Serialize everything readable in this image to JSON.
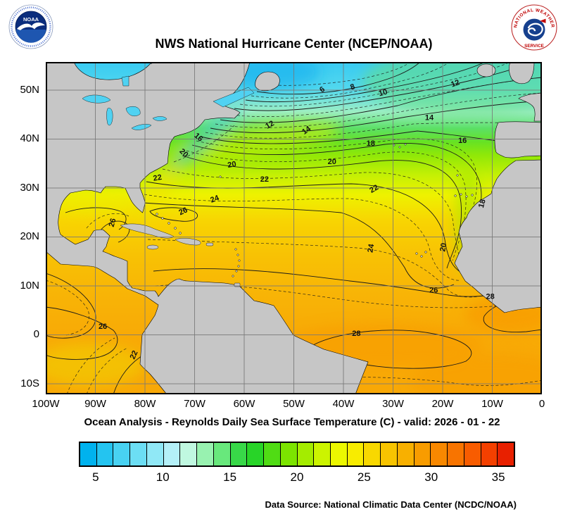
{
  "header": {
    "title": "NWS National Hurricane Center (NCEP/NOAA)"
  },
  "logos": {
    "noaa_text": "NOAA",
    "nws_ring_top": "NATIONAL WEATHER",
    "nws_ring_bottom": "SERVICE"
  },
  "map": {
    "extent": {
      "lon_min": -100,
      "lon_max": 0,
      "lat_min": -12,
      "lat_max": 55.75
    },
    "y_ticks": [
      {
        "label": "50N",
        "lat": 50
      },
      {
        "label": "40N",
        "lat": 40
      },
      {
        "label": "30N",
        "lat": 30
      },
      {
        "label": "20N",
        "lat": 20
      },
      {
        "label": "10N",
        "lat": 10
      },
      {
        "label": "0",
        "lat": 0
      },
      {
        "label": "10S",
        "lat": -10
      }
    ],
    "x_ticks": [
      {
        "label": "100W",
        "lon": -100
      },
      {
        "label": "90W",
        "lon": -90
      },
      {
        "label": "80W",
        "lon": -80
      },
      {
        "label": "70W",
        "lon": -70
      },
      {
        "label": "60W",
        "lon": -60
      },
      {
        "label": "50W",
        "lon": -50
      },
      {
        "label": "40W",
        "lon": -40
      },
      {
        "label": "30W",
        "lon": -30
      },
      {
        "label": "20W",
        "lon": -20
      },
      {
        "label": "10W",
        "lon": -10
      },
      {
        "label": "0",
        "lon": 0
      }
    ],
    "contour_labels": [
      {
        "v": "6",
        "lon": -44,
        "lat": 49.7,
        "rot": -35
      },
      {
        "v": "8",
        "lon": -38,
        "lat": 50.2,
        "rot": -20
      },
      {
        "v": "10",
        "lon": -31.9,
        "lat": 49.0,
        "rot": -15
      },
      {
        "v": "12",
        "lon": -17.3,
        "lat": 50.9,
        "rot": -20
      },
      {
        "v": "12",
        "lon": -54.6,
        "lat": 42.5,
        "rot": -30
      },
      {
        "v": "14",
        "lon": -47.2,
        "lat": 41.4,
        "rot": -35
      },
      {
        "v": "14",
        "lon": -22.7,
        "lat": 43.9,
        "rot": 0
      },
      {
        "v": "16",
        "lon": -69.5,
        "lat": 40.0,
        "rot": 40
      },
      {
        "v": "16",
        "lon": -16.0,
        "lat": 39.2,
        "rot": 0
      },
      {
        "v": "18",
        "lon": -34.5,
        "lat": 38.6,
        "rot": 0
      },
      {
        "v": "18",
        "lon": -11.6,
        "lat": 26.7,
        "rot": -75
      },
      {
        "v": "20",
        "lon": -72.5,
        "lat": 36.8,
        "rot": 45
      },
      {
        "v": "20",
        "lon": -62.4,
        "lat": 34.3,
        "rot": -10
      },
      {
        "v": "20",
        "lon": -42.3,
        "lat": 34.9,
        "rot": 0
      },
      {
        "v": "20",
        "lon": -19.4,
        "lat": 17.8,
        "rot": -80
      },
      {
        "v": "22",
        "lon": -77.4,
        "lat": 31.6,
        "rot": -10
      },
      {
        "v": "22",
        "lon": -55.9,
        "lat": 31.3,
        "rot": 0
      },
      {
        "v": "22",
        "lon": -33.6,
        "lat": 29.4,
        "rot": -30
      },
      {
        "v": "22",
        "lon": -81.8,
        "lat": -4.3,
        "rot": -65
      },
      {
        "v": "24",
        "lon": -65.8,
        "lat": 27.3,
        "rot": -20
      },
      {
        "v": "24",
        "lon": -34.0,
        "lat": 17.6,
        "rot": -80
      },
      {
        "v": "26",
        "lon": -86.1,
        "lat": 22.8,
        "rot": -75
      },
      {
        "v": "26",
        "lon": -72.1,
        "lat": 24.8,
        "rot": -25
      },
      {
        "v": "26",
        "lon": -21.8,
        "lat": 8.6,
        "rot": 0
      },
      {
        "v": "26",
        "lon": -88.5,
        "lat": 1.2,
        "rot": 0
      },
      {
        "v": "28",
        "lon": -37.4,
        "lat": -0.2,
        "rot": 0
      },
      {
        "v": "28",
        "lon": -10.4,
        "lat": 7.3,
        "rot": 0
      }
    ]
  },
  "caption": "Ocean Analysis - Reynolds Daily Sea Surface Temperature (C) - valid: 2026 - 01 - 22",
  "colorbar": {
    "range": [
      3.75,
      36.25
    ],
    "units": "C",
    "colors": [
      "#00b2ee",
      "#24c4f0",
      "#48d2f2",
      "#6cdef4",
      "#90e8f6",
      "#b4f0f8",
      "#c0f8e0",
      "#98f2b0",
      "#68e87c",
      "#38d848",
      "#28d428",
      "#50dc14",
      "#7ce400",
      "#a4ec00",
      "#ccf400",
      "#ecf800",
      "#f8ec00",
      "#f8d800",
      "#f8c400",
      "#f8b000",
      "#f89c00",
      "#f88800",
      "#f87400",
      "#f85c00",
      "#f44000",
      "#e82000"
    ],
    "ticks": [
      {
        "label": "5",
        "value": 5
      },
      {
        "label": "10",
        "value": 10
      },
      {
        "label": "15",
        "value": 15
      },
      {
        "label": "20",
        "value": 20
      },
      {
        "label": "25",
        "value": 25
      },
      {
        "label": "30",
        "value": 30
      },
      {
        "label": "35",
        "value": 35
      }
    ]
  },
  "footer": {
    "source": "Data Source: National Climatic Data Center (NCDC/NOAA)"
  }
}
